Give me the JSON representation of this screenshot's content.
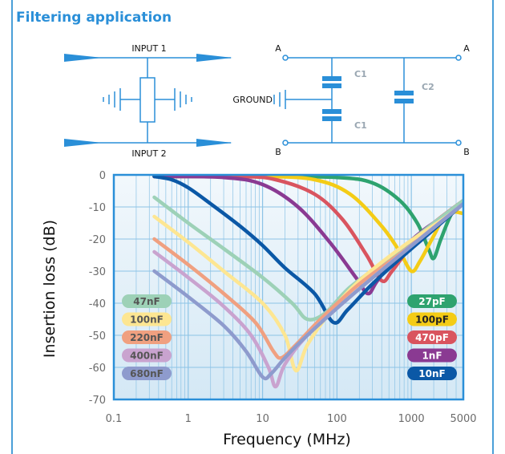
{
  "title": "Filtering application",
  "schematic": {
    "input1": "INPUT 1",
    "input2": "INPUT 2",
    "ground": "GROUND",
    "node_a_left": "A",
    "node_a_right": "A",
    "node_b_left": "B",
    "node_b_right": "B",
    "c1_top": "C1",
    "c1_bottom": "C1",
    "c2": "C2"
  },
  "colors": {
    "accent": "#2a8fd8",
    "plot_bg": "#d4e8f5",
    "grid": "#8cc3e6",
    "pill_47nF": "#9dd1b7",
    "pill_100nF": "#fde692",
    "pill_220nF": "#f0a080",
    "pill_400nF": "#c9a3cf",
    "pill_680nF": "#8e9bcd",
    "pill_27pF": "#2ea36f",
    "pill_100pF": "#f4cc16",
    "pill_470pF": "#d9545f",
    "pill_1nF": "#8a3a92",
    "pill_10nF": "#0b58a6"
  },
  "chart_data": {
    "type": "line",
    "xlabel": "Frequency (MHz)",
    "ylabel": "Insertion loss (dB)",
    "xscale": "log",
    "xlim": [
      0.1,
      5000
    ],
    "ylim": [
      -70,
      0
    ],
    "xticks": [
      "0.1",
      "1",
      "10",
      "100",
      "1000",
      "5000"
    ],
    "xtick_values": [
      0.1,
      1,
      10,
      100,
      1000,
      5000
    ],
    "yticks": [
      "0",
      "-10",
      "-20",
      "-30",
      "-40",
      "-50",
      "-60",
      "-70"
    ],
    "ytick_values": [
      0,
      -10,
      -20,
      -30,
      -40,
      -50,
      -60,
      -70
    ],
    "grid": true,
    "legend_left": [
      "47nF",
      "100nF",
      "220nF",
      "400nF",
      "680nF"
    ],
    "legend_right": [
      "27pF",
      "100pF",
      "470pF",
      "1nF",
      "10nF"
    ],
    "series": [
      {
        "name": "27pF",
        "color": "#2ea36f",
        "points": [
          [
            0.35,
            -0.5
          ],
          [
            10,
            -0.5
          ],
          [
            100,
            -0.8
          ],
          [
            300,
            -2.5
          ],
          [
            700,
            -8
          ],
          [
            1200,
            -15
          ],
          [
            1700,
            -23
          ],
          [
            2000,
            -26
          ],
          [
            2500,
            -20
          ],
          [
            3500,
            -12
          ],
          [
            5000,
            -8
          ]
        ]
      },
      {
        "name": "100pF",
        "color": "#f4cc16",
        "points": [
          [
            0.35,
            -0.5
          ],
          [
            10,
            -0.5
          ],
          [
            50,
            -1.5
          ],
          [
            150,
            -6
          ],
          [
            400,
            -16
          ],
          [
            700,
            -24
          ],
          [
            1000,
            -30
          ],
          [
            1300,
            -27
          ],
          [
            2000,
            -19
          ],
          [
            3000,
            -12
          ],
          [
            5000,
            -12
          ]
        ]
      },
      {
        "name": "470pF",
        "color": "#d9545f",
        "points": [
          [
            0.35,
            -0.5
          ],
          [
            5,
            -0.5
          ],
          [
            15,
            -1.5
          ],
          [
            50,
            -6
          ],
          [
            120,
            -14
          ],
          [
            250,
            -25
          ],
          [
            400,
            -33
          ],
          [
            550,
            -30
          ],
          [
            1000,
            -22
          ],
          [
            2000,
            -15
          ],
          [
            5000,
            -8
          ]
        ]
      },
      {
        "name": "1nF",
        "color": "#8a3a92",
        "points": [
          [
            0.35,
            -0.5
          ],
          [
            3,
            -0.8
          ],
          [
            10,
            -3
          ],
          [
            30,
            -10
          ],
          [
            80,
            -21
          ],
          [
            180,
            -32
          ],
          [
            260,
            -37
          ],
          [
            350,
            -33
          ],
          [
            700,
            -24
          ],
          [
            1500,
            -17
          ],
          [
            5000,
            -9
          ]
        ]
      },
      {
        "name": "10nF",
        "color": "#0b58a6",
        "points": [
          [
            0.35,
            -0.5
          ],
          [
            0.6,
            -1.5
          ],
          [
            1,
            -4
          ],
          [
            2,
            -9
          ],
          [
            5,
            -16
          ],
          [
            10,
            -22
          ],
          [
            20,
            -29
          ],
          [
            50,
            -37
          ],
          [
            90,
            -46
          ],
          [
            140,
            -42
          ],
          [
            300,
            -34
          ],
          [
            800,
            -25
          ],
          [
            2000,
            -17
          ],
          [
            5000,
            -9
          ]
        ]
      },
      {
        "name": "47nF",
        "color": "#9dd1b7",
        "points": [
          [
            0.35,
            -7
          ],
          [
            1,
            -15
          ],
          [
            3,
            -23
          ],
          [
            10,
            -32
          ],
          [
            25,
            -40
          ],
          [
            40,
            -45
          ],
          [
            70,
            -43
          ],
          [
            150,
            -35
          ],
          [
            500,
            -26
          ],
          [
            2000,
            -15
          ],
          [
            5000,
            -8
          ]
        ]
      },
      {
        "name": "100nF",
        "color": "#fde692",
        "points": [
          [
            0.35,
            -13
          ],
          [
            1,
            -21
          ],
          [
            3,
            -30
          ],
          [
            10,
            -40
          ],
          [
            20,
            -50
          ],
          [
            28,
            -61
          ],
          [
            40,
            -53
          ],
          [
            80,
            -43
          ],
          [
            200,
            -33
          ],
          [
            800,
            -22
          ],
          [
            3000,
            -13
          ],
          [
            5000,
            -9
          ]
        ]
      },
      {
        "name": "220nF",
        "color": "#f0a080",
        "points": [
          [
            0.35,
            -20
          ],
          [
            1,
            -28
          ],
          [
            3,
            -37
          ],
          [
            8,
            -46
          ],
          [
            14,
            -55
          ],
          [
            18,
            -57
          ],
          [
            28,
            -53
          ],
          [
            60,
            -45
          ],
          [
            200,
            -34
          ],
          [
            1000,
            -22
          ],
          [
            5000,
            -9
          ]
        ]
      },
      {
        "name": "400nF",
        "color": "#c9a3cf",
        "points": [
          [
            0.35,
            -24
          ],
          [
            1,
            -32
          ],
          [
            3,
            -41
          ],
          [
            7,
            -50
          ],
          [
            12,
            -60
          ],
          [
            15,
            -66
          ],
          [
            20,
            -59
          ],
          [
            40,
            -50
          ],
          [
            150,
            -38
          ],
          [
            700,
            -25
          ],
          [
            5000,
            -9
          ]
        ]
      },
      {
        "name": "680nF",
        "color": "#8e9bcd",
        "points": [
          [
            0.35,
            -30
          ],
          [
            1,
            -38
          ],
          [
            3,
            -47
          ],
          [
            6,
            -55
          ],
          [
            10,
            -63
          ],
          [
            13,
            -62
          ],
          [
            20,
            -57
          ],
          [
            40,
            -50
          ],
          [
            150,
            -38
          ],
          [
            800,
            -24
          ],
          [
            5000,
            -9
          ]
        ]
      }
    ]
  }
}
